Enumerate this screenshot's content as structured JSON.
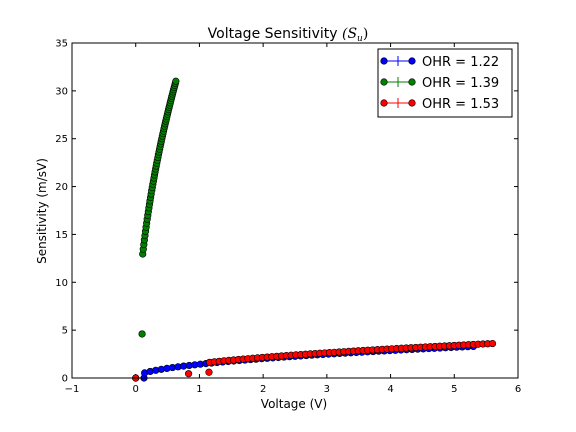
{
  "chart_data": {
    "type": "scatter",
    "title": "Voltage Sensitivity (S_u)",
    "title_plain": "Voltage Sensitivity ",
    "title_math": "(S",
    "title_math_sub": "u",
    "title_math_close": ")",
    "xlabel": "Voltage (V)",
    "ylabel": "Sensitivity (m/sV)",
    "xlim": [
      -1,
      6
    ],
    "ylim": [
      0,
      35
    ],
    "x_ticks": [
      -1,
      0,
      1,
      2,
      3,
      4,
      5,
      6
    ],
    "y_ticks": [
      0,
      5,
      10,
      15,
      20,
      25,
      30,
      35
    ],
    "grid": false,
    "legend_position": "top-right",
    "series": [
      {
        "name": "OHR = 1.22",
        "color": "#0000ff",
        "x_start": 0.0,
        "x_end": 5.3,
        "count": 60,
        "y_end": 3.3,
        "start_points": [
          [
            0.0,
            0.0
          ],
          [
            0.13,
            0.0
          ]
        ]
      },
      {
        "name": "OHR = 1.39",
        "color": "#007f00",
        "x_start": 0.0,
        "x_end": 0.63,
        "count": 60,
        "y_end": 31.0,
        "start_points": [
          [
            0.1,
            4.6
          ]
        ]
      },
      {
        "name": "OHR = 1.53",
        "color": "#ff0000",
        "x_start": 0.0,
        "x_end": 5.6,
        "count": 60,
        "y_end": 3.6,
        "start_points": [
          [
            0.0,
            0.0
          ],
          [
            0.83,
            0.45
          ],
          [
            1.15,
            0.6
          ]
        ]
      }
    ]
  }
}
